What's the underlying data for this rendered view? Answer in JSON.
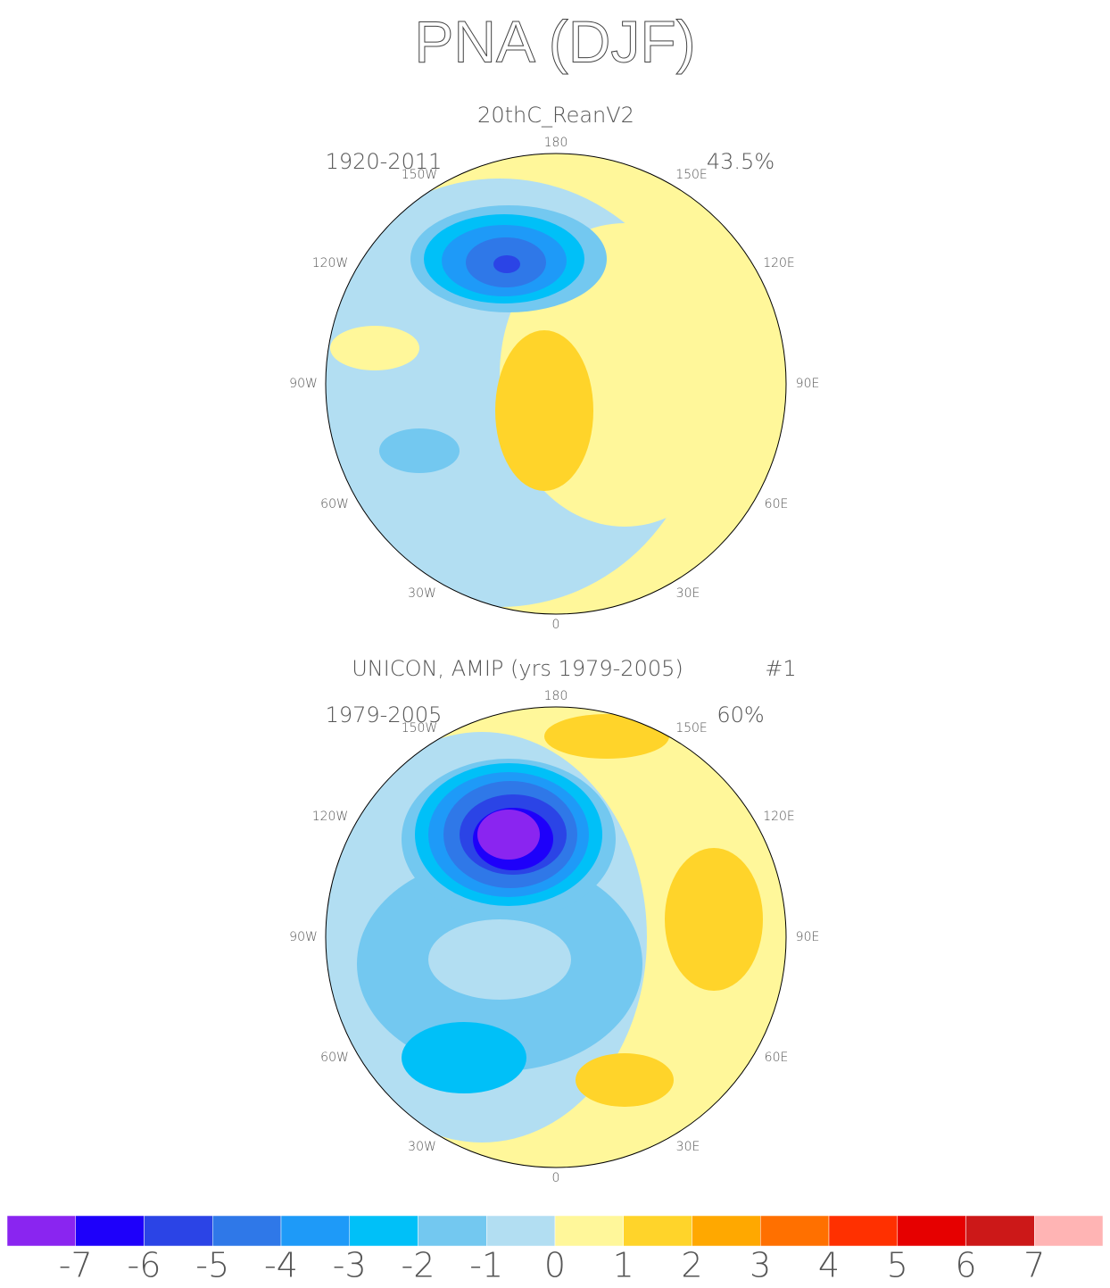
{
  "title": "PNA (DJF)",
  "lon_labels": [
    "180",
    "150E",
    "120E",
    "90E",
    "60E",
    "30E",
    "0",
    "30W",
    "60W",
    "90W",
    "120W",
    "150W"
  ],
  "panels": [
    {
      "subtitle": "20thC_ReanV2",
      "period": "1920-2011",
      "variance": "43.5%"
    },
    {
      "subtitle": "UNICON, AMIP (yrs 1979-2005)",
      "member": "#1",
      "period": "1979-2005",
      "variance": "60%"
    }
  ],
  "colorbar": {
    "colors": [
      "#8a25f0",
      "#1e00fa",
      "#2b44e6",
      "#2f78e8",
      "#1e9af8",
      "#00c0f8",
      "#73c8f0",
      "#b2def2",
      "#fff79a",
      "#ffd42a",
      "#ffa800",
      "#ff7000",
      "#ff3000",
      "#e60000",
      "#cc1818",
      "#ffb4b4"
    ],
    "ticks": [
      -7,
      -6,
      -5,
      -4,
      -3,
      -2,
      -1,
      0,
      1,
      2,
      3,
      4,
      5,
      6,
      7
    ]
  }
}
